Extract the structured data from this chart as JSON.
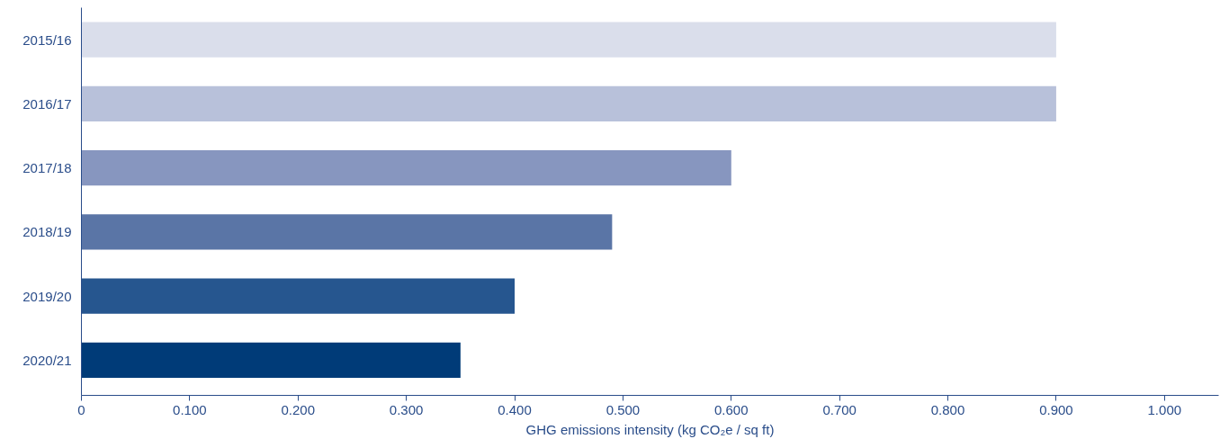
{
  "chart_data": {
    "type": "bar",
    "orientation": "horizontal",
    "xlabel": "GHG emissions intensity (kg CO₂e / sq ft)",
    "categories": [
      "2015/16",
      "2016/17",
      "2017/18",
      "2018/19",
      "2019/20",
      "2020/21"
    ],
    "values": [
      0.9,
      0.9,
      0.6,
      0.49,
      0.4,
      0.35
    ],
    "colors": [
      "#dadeeb",
      "#b8c1da",
      "#8796bf",
      "#5a75a6",
      "#26568f",
      "#003b78"
    ],
    "xlim": [
      0,
      1.05
    ],
    "xticks": [
      0,
      {
        "value": 0.1,
        "label": "0.100"
      },
      {
        "value": 0.2,
        "label": "0.200"
      },
      {
        "value": 0.3,
        "label": "0.300"
      },
      {
        "value": 0.4,
        "label": "0.400"
      },
      {
        "value": 0.5,
        "label": "0.500"
      },
      {
        "value": 0.6,
        "label": "0.600"
      },
      {
        "value": 0.7,
        "label": "0.700"
      },
      {
        "value": 0.8,
        "label": "0.800"
      },
      {
        "value": 0.9,
        "label": "0.900"
      },
      {
        "value": 1.0,
        "label": "1.000"
      }
    ],
    "grid": false
  }
}
